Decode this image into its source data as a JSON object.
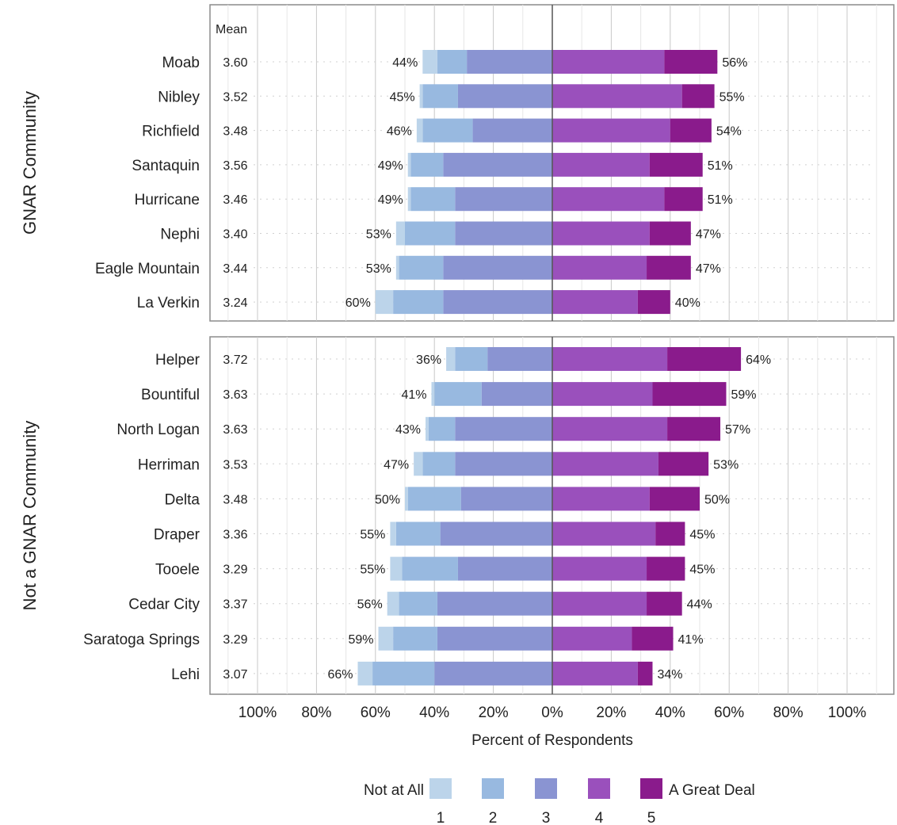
{
  "chart_data": {
    "type": "bar",
    "stacked": "diverging",
    "xlabel": "Percent of Respondents",
    "xlim": [
      -100,
      100
    ],
    "x_ticks": [
      "100%",
      "80%",
      "60%",
      "40%",
      "20%",
      "0%",
      "20%",
      "40%",
      "60%",
      "80%",
      "100%"
    ],
    "mean_header": "Mean",
    "grid": true,
    "legend": {
      "placement": "bottom",
      "left_label": "Not at All",
      "right_label": "A Great Deal",
      "levels": [
        "1",
        "2",
        "3",
        "4",
        "5"
      ]
    },
    "colors": [
      "#bcd4ea",
      "#98b9e0",
      "#8a94d2",
      "#9a50bc",
      "#8a1b8c"
    ],
    "panels": [
      {
        "title": "GNAR Community",
        "rows": [
          {
            "name": "Moab",
            "mean": "3.60",
            "values": [
              5,
              10,
              29,
              38,
              18
            ],
            "neg_label": "44%",
            "pos_label": "56%"
          },
          {
            "name": "Nibley",
            "mean": "3.52",
            "values": [
              1,
              12,
              32,
              44,
              11
            ],
            "neg_label": "45%",
            "pos_label": "55%"
          },
          {
            "name": "Richfield",
            "mean": "3.48",
            "values": [
              2,
              17,
              27,
              40,
              14
            ],
            "neg_label": "46%",
            "pos_label": "54%"
          },
          {
            "name": "Santaquin",
            "mean": "3.56",
            "values": [
              1,
              11,
              37,
              33,
              18
            ],
            "neg_label": "49%",
            "pos_label": "51%"
          },
          {
            "name": "Hurricane",
            "mean": "3.46",
            "values": [
              1,
              15,
              33,
              38,
              13
            ],
            "neg_label": "49%",
            "pos_label": "51%"
          },
          {
            "name": "Nephi",
            "mean": "3.40",
            "values": [
              3,
              17,
              33,
              33,
              14
            ],
            "neg_label": "53%",
            "pos_label": "47%"
          },
          {
            "name": "Eagle Mountain",
            "mean": "3.44",
            "values": [
              1,
              15,
              37,
              32,
              15
            ],
            "neg_label": "53%",
            "pos_label": "47%"
          },
          {
            "name": "La Verkin",
            "mean": "3.24",
            "values": [
              6,
              17,
              37,
              29,
              11
            ],
            "neg_label": "60%",
            "pos_label": "40%"
          }
        ]
      },
      {
        "title": "Not a GNAR Community",
        "rows": [
          {
            "name": "Helper",
            "mean": "3.72",
            "values": [
              3,
              11,
              22,
              39,
              25
            ],
            "neg_label": "36%",
            "pos_label": "64%"
          },
          {
            "name": "Bountiful",
            "mean": "3.63",
            "values": [
              1,
              16,
              24,
              34,
              25
            ],
            "neg_label": "41%",
            "pos_label": "59%"
          },
          {
            "name": "North Logan",
            "mean": "3.63",
            "values": [
              1,
              9,
              33,
              39,
              18
            ],
            "neg_label": "43%",
            "pos_label": "57%"
          },
          {
            "name": "Herriman",
            "mean": "3.53",
            "values": [
              3,
              11,
              33,
              36,
              17
            ],
            "neg_label": "47%",
            "pos_label": "53%"
          },
          {
            "name": "Delta",
            "mean": "3.48",
            "values": [
              1,
              18,
              31,
              33,
              17
            ],
            "neg_label": "50%",
            "pos_label": "50%"
          },
          {
            "name": "Draper",
            "mean": "3.36",
            "values": [
              2,
              15,
              38,
              35,
              10
            ],
            "neg_label": "55%",
            "pos_label": "45%"
          },
          {
            "name": "Tooele",
            "mean": "3.29",
            "values": [
              4,
              19,
              32,
              32,
              13
            ],
            "neg_label": "55%",
            "pos_label": "45%"
          },
          {
            "name": "Cedar City",
            "mean": "3.37",
            "values": [
              4,
              13,
              39,
              32,
              12
            ],
            "neg_label": "56%",
            "pos_label": "44%"
          },
          {
            "name": "Saratoga Springs",
            "mean": "3.29",
            "values": [
              5,
              15,
              39,
              27,
              14
            ],
            "neg_label": "59%",
            "pos_label": "41%"
          },
          {
            "name": "Lehi",
            "mean": "3.07",
            "values": [
              5,
              21,
              40,
              29,
              5
            ],
            "neg_label": "66%",
            "pos_label": "34%"
          }
        ]
      }
    ]
  }
}
